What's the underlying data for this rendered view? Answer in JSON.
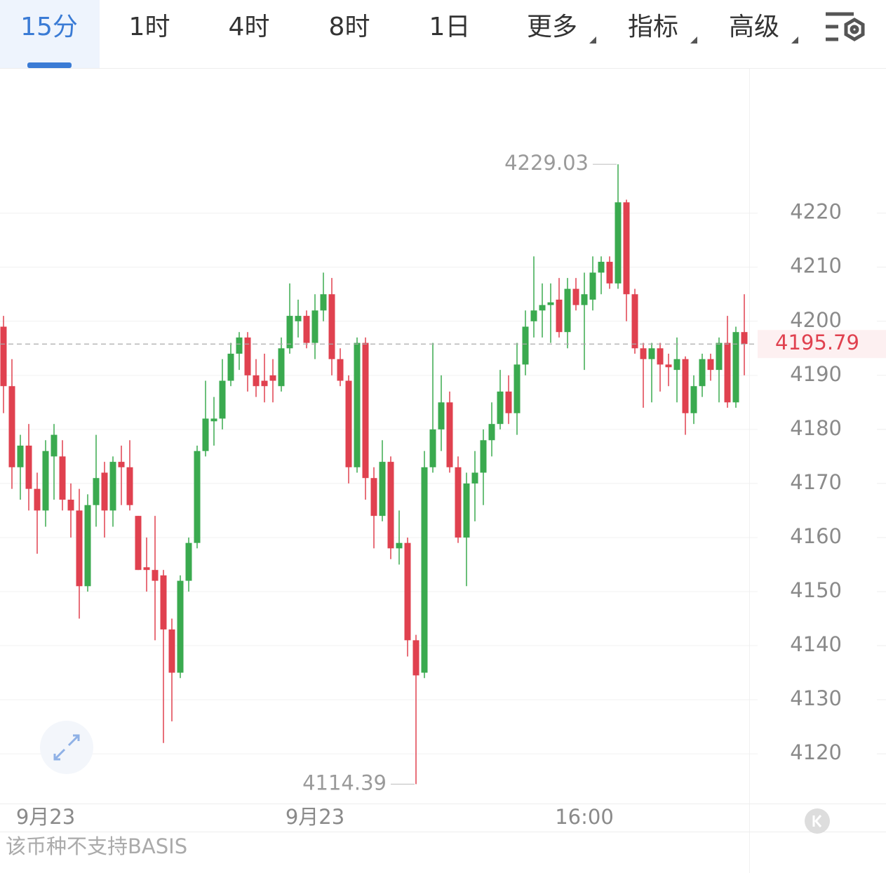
{
  "tabs": [
    "15分",
    "1时",
    "4时",
    "8时",
    "1日",
    "更多",
    "指标",
    "高级"
  ],
  "footer": "该币种不支持BASIS",
  "chart_data": {
    "type": "candlestick",
    "categories": [
      null,
      null,
      null,
      null,
      null,
      "9月23",
      null,
      null,
      null,
      null,
      null,
      null,
      null,
      null,
      null,
      null,
      null,
      null,
      null,
      null,
      null,
      null,
      null,
      null,
      null,
      null,
      null,
      null,
      null,
      null,
      null,
      null,
      null,
      null,
      null,
      null,
      null,
      "9月23",
      null,
      null,
      null,
      null,
      null,
      null,
      null,
      null,
      null,
      null,
      null,
      null,
      null,
      null,
      null,
      null,
      null,
      null,
      null,
      null,
      null,
      null,
      null,
      null,
      null,
      null,
      null,
      null,
      null,
      null,
      null,
      "16:00",
      null,
      null,
      null,
      null,
      null,
      null,
      null,
      null,
      null,
      null,
      null,
      null,
      null,
      null,
      null,
      null,
      null,
      null,
      null
    ],
    "open": [
      4199,
      4188,
      4173,
      4177,
      4169,
      4165,
      4175,
      4175,
      4167,
      4165,
      4151,
      4166,
      4172,
      4165,
      4174,
      4173,
      4164,
      4154.5,
      4154,
      4153,
      4143,
      4135,
      4152,
      4159,
      4176,
      4181.5,
      4182,
      4189,
      4194,
      4197,
      4190,
      4189,
      4190,
      4188,
      4195,
      4200,
      4201,
      4196,
      4202,
      4205,
      4193,
      4189,
      4173,
      4196,
      4171,
      4164,
      4174,
      4158,
      4159,
      4141,
      4135,
      4173,
      4180,
      4185,
      4173,
      4160,
      4170,
      4172,
      4178,
      4181,
      4187,
      4183,
      4192,
      4200,
      4202,
      4203,
      4204,
      4198,
      4206,
      4203,
      4204,
      4209,
      4211,
      4207,
      4222,
      4205,
      4195,
      4193,
      4195,
      4192,
      4191,
      4193,
      4183,
      4188,
      4193,
      4191,
      4196,
      4185,
      4198
    ],
    "high": [
      4201,
      4193,
      4179,
      4181,
      4172,
      4178,
      4181,
      4178,
      4170,
      4169,
      4168,
      4179,
      4174,
      4175,
      4177,
      4178,
      4164,
      4160,
      4164,
      4154,
      4145,
      4153,
      4160,
      4177,
      4189,
      4186,
      4193,
      4196,
      4198,
      4198,
      4193,
      4194,
      4193,
      4197,
      4207,
      4204,
      4202,
      4205,
      4209,
      4208,
      4195,
      4190,
      4197,
      4197,
      4173,
      4178,
      4175,
      4165,
      4160,
      4142,
      4176,
      4196,
      4190,
      4187,
      4175,
      4172,
      4176,
      4180,
      4185,
      4191,
      4190,
      4196,
      4202,
      4212,
      4207,
      4207,
      4208,
      4208,
      4208,
      4209,
      4212,
      4212,
      4212,
      4229.03,
      4222.5,
      4206,
      4196,
      4196,
      4196,
      4194,
      4197,
      4193.5,
      4190,
      4194,
      4194,
      4197,
      4201,
      4199,
      4205
    ],
    "low": [
      4183,
      4169,
      4167,
      4165,
      4157,
      4162,
      4167,
      4165,
      4160,
      4145,
      4150,
      4162,
      4160,
      4162,
      4166,
      4165,
      4154,
      4150,
      4141,
      4122,
      4126,
      4134,
      4150,
      4158,
      4175,
      4177,
      4180,
      4188,
      4191,
      4187,
      4186,
      4185,
      4185,
      4187,
      4194,
      4197,
      4195,
      4193,
      4200,
      4190,
      4188,
      4170,
      4172,
      4167,
      4158,
      4163,
      4156,
      4155,
      4138,
      4114.39,
      4134,
      4172,
      4176,
      4172,
      4159,
      4151,
      4163,
      4166,
      4175,
      4180,
      4181,
      4179,
      4190,
      4197,
      4197,
      4196,
      4197,
      4195,
      4202,
      4191,
      4202,
      4205,
      4206,
      4206,
      4200,
      4194,
      4184,
      4185,
      4187,
      4188,
      4185,
      4179,
      4181,
      4186,
      4189,
      4185,
      4184,
      4184,
      4190
    ],
    "close": [
      4188,
      4173,
      4177,
      4169,
      4165,
      4176,
      4179,
      4167,
      4165,
      4151,
      4166,
      4171,
      4165,
      4174,
      4173,
      4166,
      4154,
      4154,
      4152,
      4143,
      4135,
      4152,
      4159,
      4176,
      4182,
      4182,
      4189,
      4194,
      4197,
      4190,
      4188,
      4188,
      4189,
      4195,
      4201,
      4201,
      4196,
      4202,
      4205,
      4193,
      4189,
      4173,
      4196,
      4171,
      4164,
      4174,
      4158,
      4159,
      4141,
      4134.5,
      4173,
      4180,
      4185,
      4173,
      4160,
      4170,
      4172,
      4178,
      4181,
      4187,
      4183,
      4192,
      4199,
      4202,
      4203,
      4203.5,
      4198,
      4206,
      4203,
      4205,
      4209,
      4211,
      4207,
      4222,
      4205,
      4195,
      4193,
      4195,
      4192,
      4191.5,
      4193,
      4183,
      4188,
      4193,
      4191,
      4196,
      4185,
      4198,
      4195.79
    ],
    "up_color": "#3aaa4f",
    "down_color": "#e0414f",
    "ylim": [
      4110.8,
      4246.7
    ],
    "yticks": [
      4120,
      4130,
      4140,
      4150,
      4160,
      4170,
      4180,
      4190,
      4200,
      4210,
      4220
    ],
    "grid": true
  }
}
